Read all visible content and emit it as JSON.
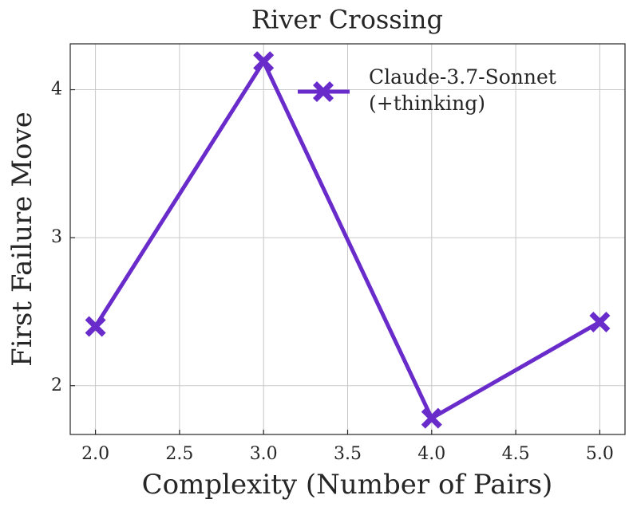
{
  "chart_data": {
    "type": "line",
    "title": "River Crossing",
    "x_label": "Complexity (Number of Pairs)",
    "y_label": "First Failure Move",
    "x": [
      2,
      3,
      4,
      5
    ],
    "series": [
      {
        "name": "Claude-3.7-Sonnet (+thinking)",
        "color": "#6a2bcb",
        "values": [
          2.4,
          4.19,
          1.78,
          2.43
        ]
      }
    ],
    "xlim": [
      1.85,
      5.15
    ],
    "xticks": [
      {
        "value": 2,
        "label": "2.0"
      },
      {
        "value": 2.5,
        "label": "2.5"
      },
      {
        "value": 3,
        "label": "3.0"
      },
      {
        "value": 3.5,
        "label": "3.5"
      },
      {
        "value": 4,
        "label": "4.0"
      },
      {
        "value": 4.5,
        "label": "4.5"
      },
      {
        "value": 5,
        "label": "5.0"
      }
    ],
    "ylim": [
      1.67,
      4.31
    ],
    "yticks": [
      2,
      3,
      4
    ],
    "grid": true,
    "legend": "upper right"
  }
}
